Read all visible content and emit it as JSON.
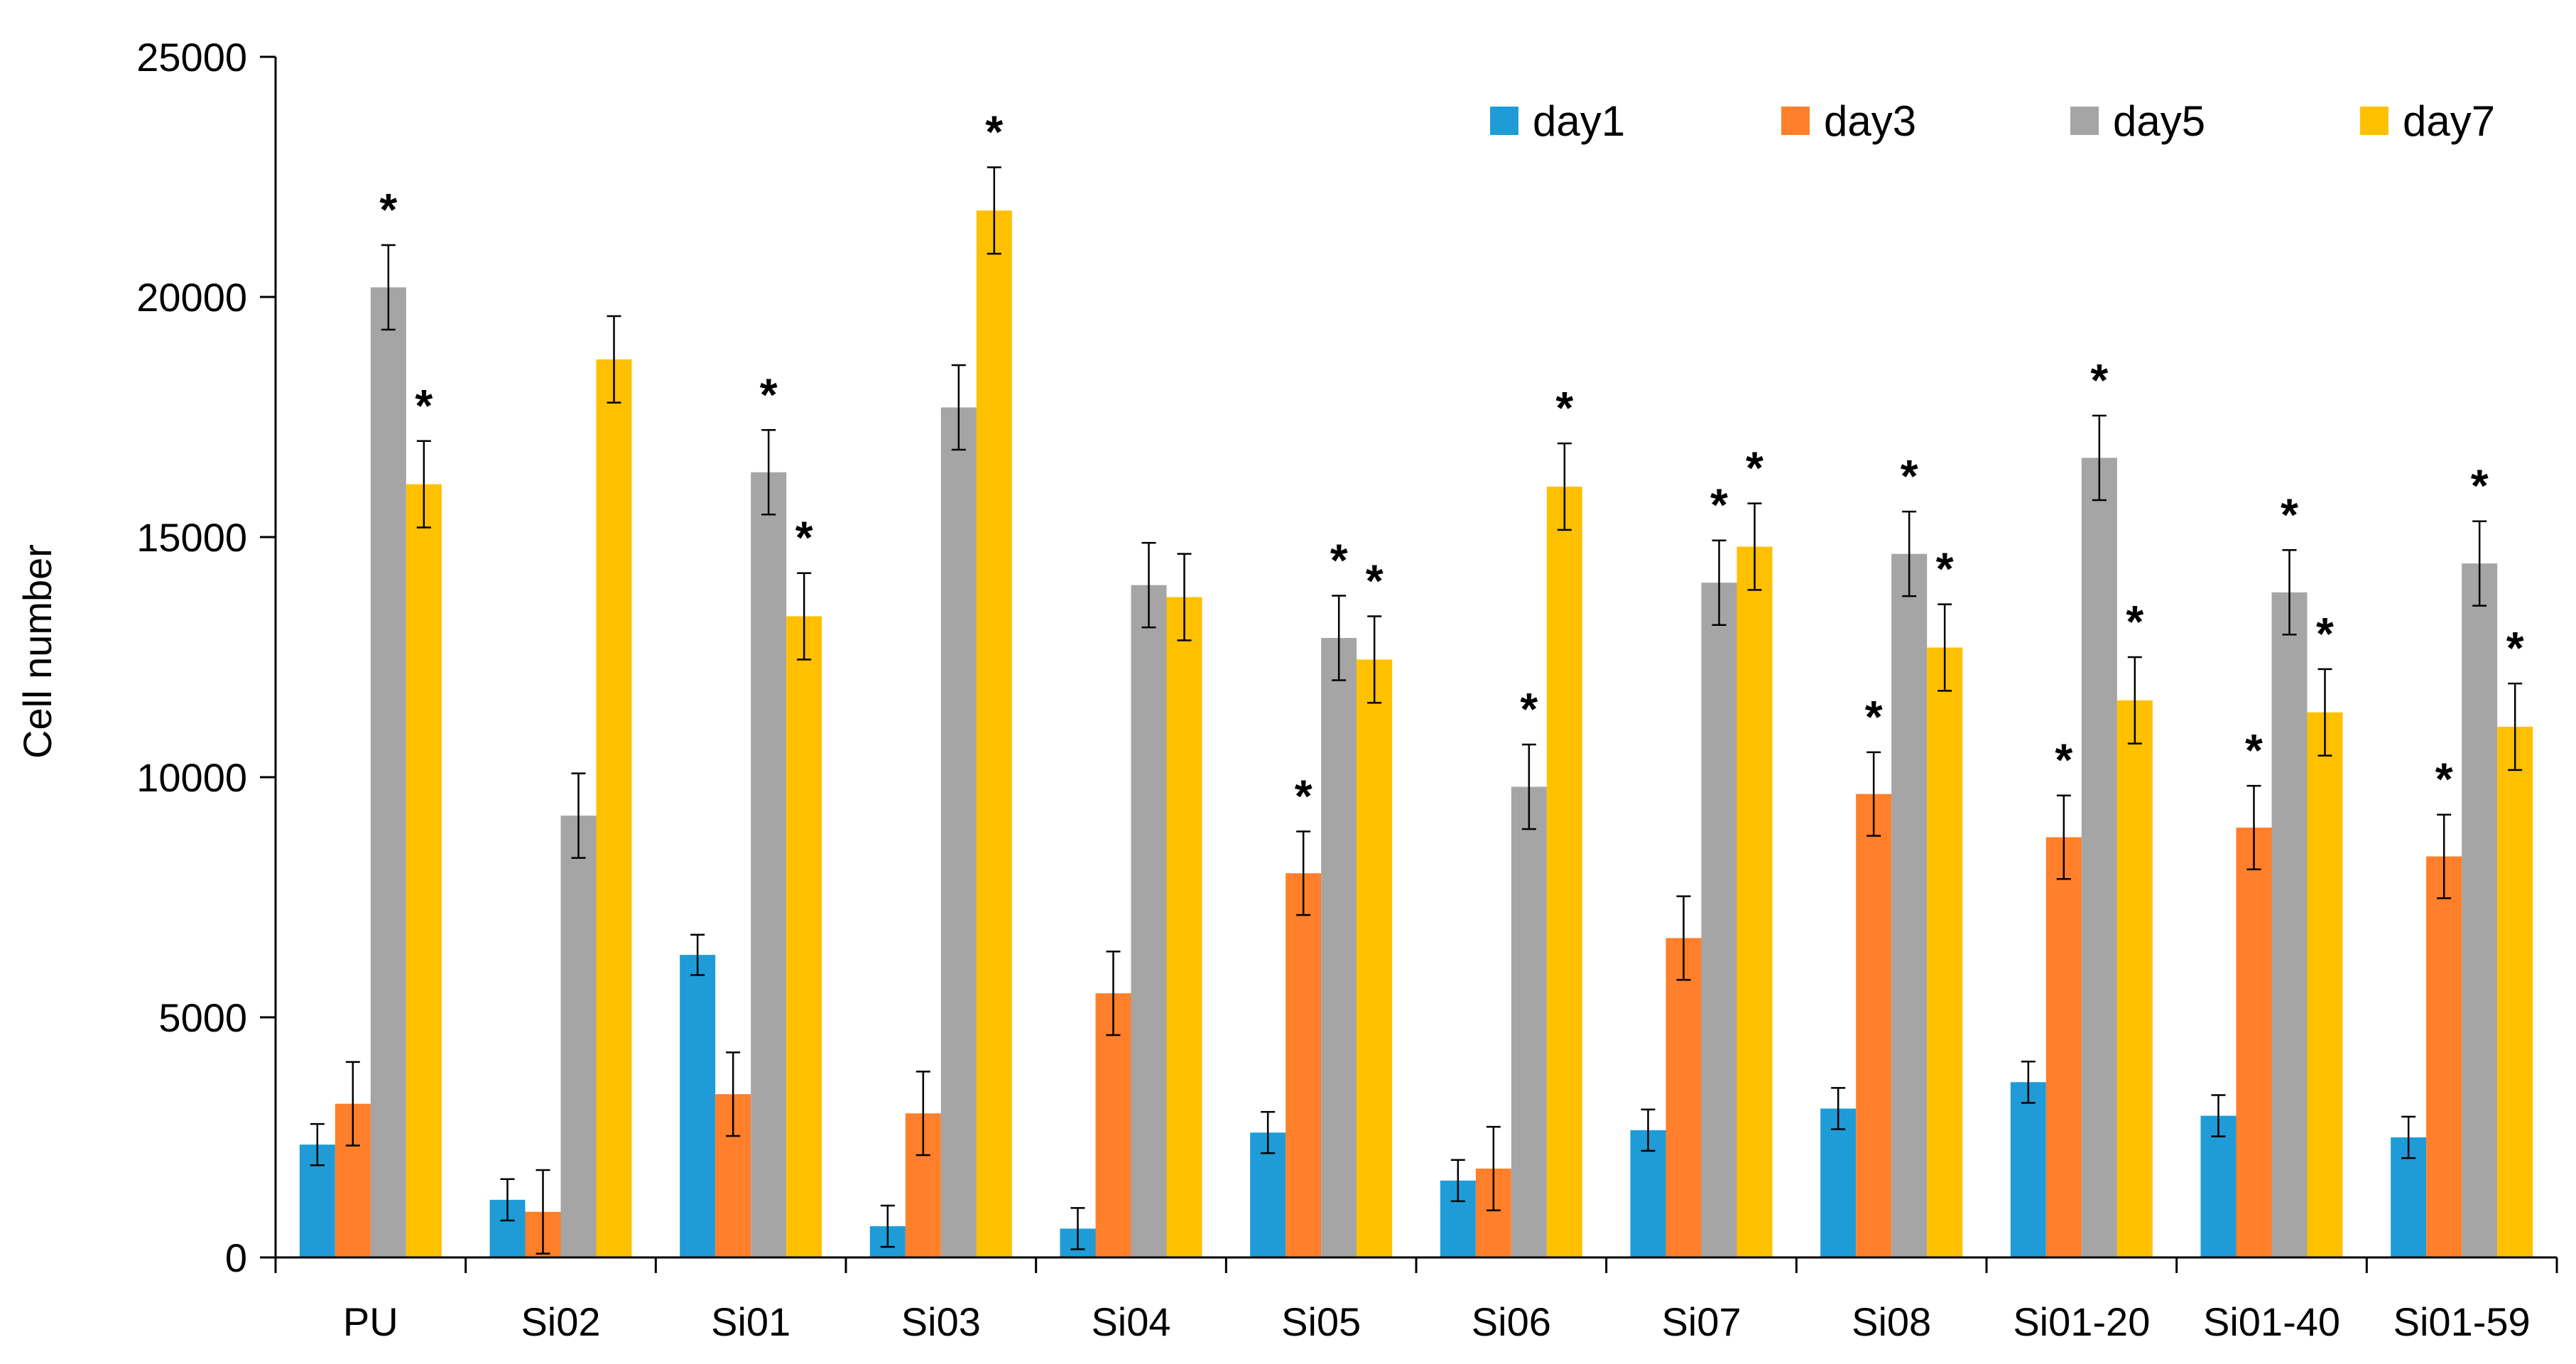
{
  "chart_data": {
    "type": "bar",
    "title": "",
    "xlabel": "",
    "ylabel": "Cell number",
    "ylim": [
      0,
      25000
    ],
    "yticks": [
      0,
      5000,
      10000,
      15000,
      20000,
      25000
    ],
    "legend_position": "top-right",
    "categories": [
      "PU",
      "Si02",
      "Si01",
      "Si03",
      "Si04",
      "Si05",
      "Si06",
      "Si07",
      "Si08",
      "Si01-20",
      "Si01-40",
      "Si01-59"
    ],
    "series": [
      {
        "name": "day1",
        "color": "#1f9cd8",
        "values": [
          2350,
          1200,
          6300,
          650,
          600,
          2600,
          1600,
          2650,
          3100,
          3650,
          2950,
          2500
        ],
        "errors": [
          430,
          430,
          420,
          430,
          430,
          430,
          430,
          430,
          430,
          430,
          430,
          430
        ],
        "significant": [
          false,
          false,
          false,
          false,
          false,
          false,
          false,
          false,
          false,
          false,
          false,
          false
        ]
      },
      {
        "name": "day3",
        "color": "#ff7f2a",
        "values": [
          3200,
          950,
          3400,
          3000,
          5500,
          8000,
          1850,
          6650,
          9650,
          8750,
          8950,
          8350
        ],
        "errors": [
          870,
          870,
          870,
          870,
          870,
          870,
          870,
          870,
          870,
          870,
          870,
          870
        ],
        "significant": [
          false,
          false,
          false,
          false,
          false,
          true,
          false,
          false,
          true,
          true,
          true,
          true
        ]
      },
      {
        "name": "day5",
        "color": "#a5a5a5",
        "values": [
          20200,
          9200,
          16350,
          17700,
          14000,
          12900,
          9800,
          14050,
          14650,
          16650,
          13850,
          14450
        ],
        "errors": [
          880,
          880,
          880,
          880,
          880,
          880,
          880,
          880,
          880,
          880,
          880,
          880
        ],
        "significant": [
          true,
          false,
          true,
          false,
          false,
          true,
          true,
          true,
          true,
          true,
          true,
          true
        ]
      },
      {
        "name": "day7",
        "color": "#ffc000",
        "values": [
          16100,
          18700,
          13350,
          21800,
          13750,
          12450,
          16050,
          14800,
          12700,
          11600,
          11350,
          11050
        ],
        "errors": [
          900,
          900,
          900,
          900,
          900,
          900,
          900,
          900,
          900,
          900,
          900,
          900
        ],
        "significant": [
          true,
          false,
          true,
          true,
          false,
          true,
          true,
          true,
          true,
          true,
          true,
          true
        ]
      }
    ],
    "significance_marker": "*"
  }
}
